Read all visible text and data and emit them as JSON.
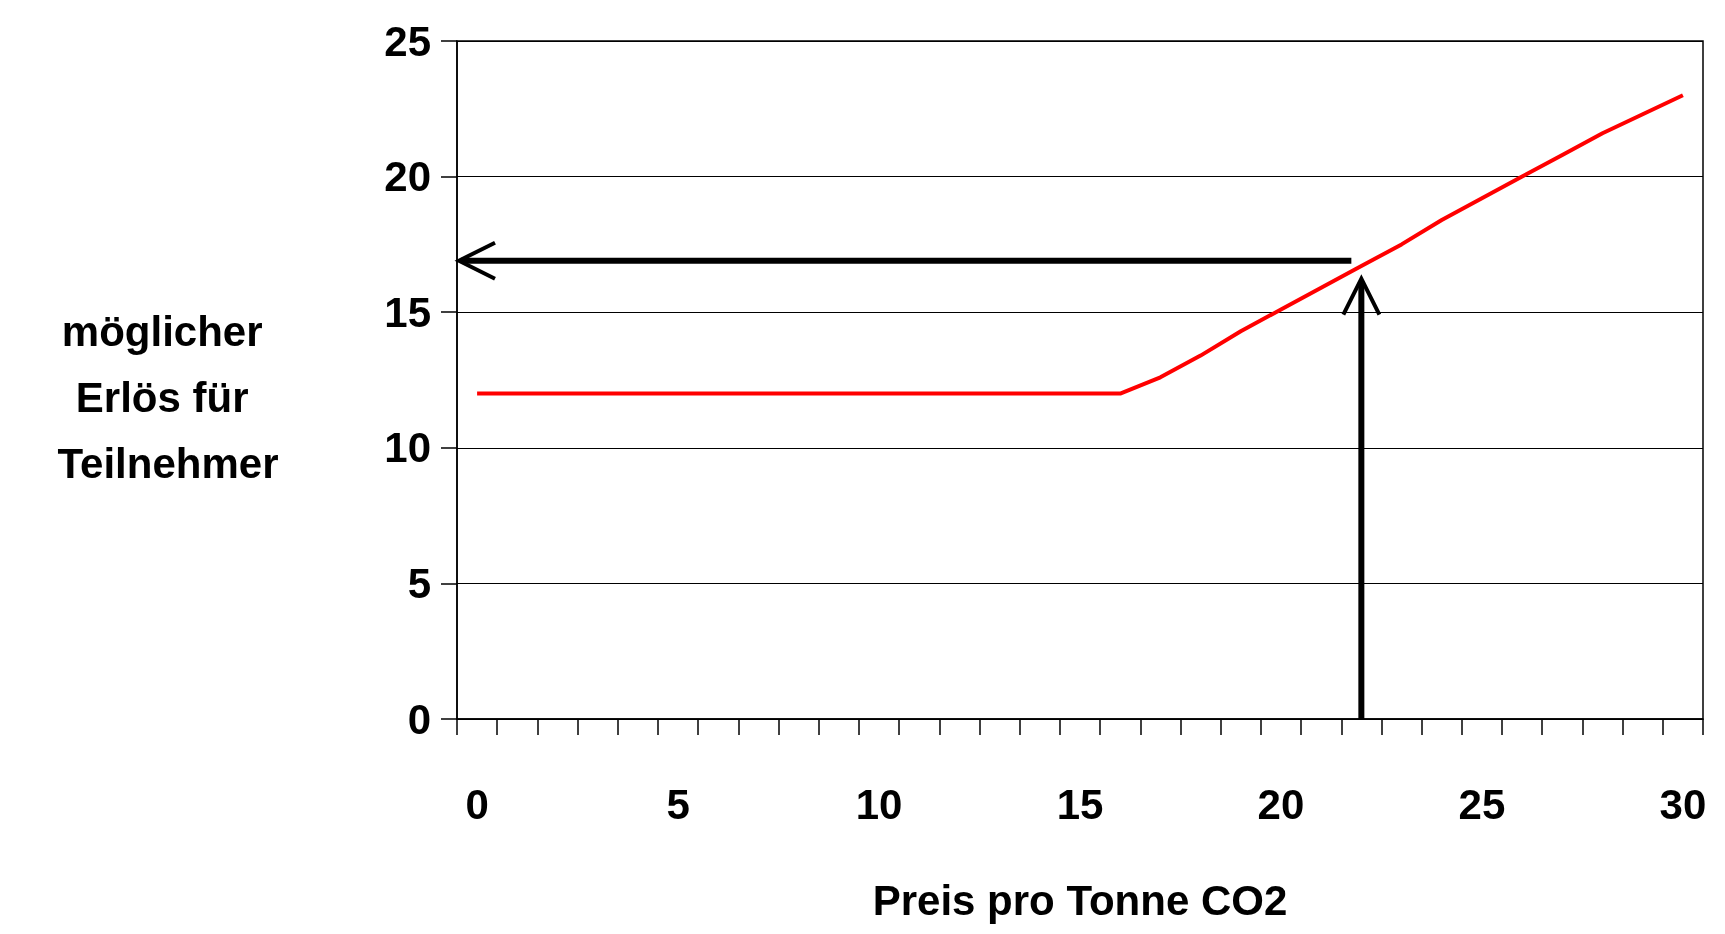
{
  "chart_data": {
    "type": "line",
    "xlabel": "Preis pro Tonne CO2",
    "ylabel": "möglicher Erlös für Teilnehmer",
    "x": [
      0,
      1,
      2,
      3,
      4,
      5,
      6,
      7,
      8,
      9,
      10,
      11,
      12,
      13,
      14,
      15,
      16,
      17,
      18,
      19,
      20,
      21,
      22,
      23,
      24,
      25,
      26,
      27,
      28,
      29,
      30
    ],
    "series": [
      {
        "color": "#ff0000",
        "values": [
          12,
          12,
          12,
          12,
          12,
          12,
          12,
          12,
          12,
          12,
          12,
          12,
          12,
          12,
          12,
          12,
          12,
          12.6,
          13.4,
          14.3,
          15.1,
          15.9,
          16.7,
          17.5,
          18.4,
          19.2,
          20,
          20.8,
          21.6,
          22.3,
          23
        ]
      }
    ],
    "xlim": [
      -0.5,
      30.5
    ],
    "xticks": [
      0,
      5,
      10,
      15,
      20,
      25,
      30,
      {
        "value": -0.5,
        "label": null
      },
      {
        "value": 0.5,
        "label": null
      },
      {
        "value": 1.5,
        "label": null
      },
      {
        "value": 2.5,
        "label": null
      },
      {
        "value": 3.5,
        "label": null
      },
      {
        "value": 4.5,
        "label": null
      },
      {
        "value": 5.5,
        "label": null
      },
      {
        "value": 6.5,
        "label": null
      },
      {
        "value": 7.5,
        "label": null
      },
      {
        "value": 8.5,
        "label": null
      },
      {
        "value": 9.5,
        "label": null
      },
      {
        "value": 10.5,
        "label": null
      },
      {
        "value": 11.5,
        "label": null
      },
      {
        "value": 12.5,
        "label": null
      },
      {
        "value": 13.5,
        "label": null
      },
      {
        "value": 14.5,
        "label": null
      },
      {
        "value": 15.5,
        "label": null
      },
      {
        "value": 16.5,
        "label": null
      },
      {
        "value": 17.5,
        "label": null
      },
      {
        "value": 18.5,
        "label": null
      },
      {
        "value": 19.5,
        "label": null
      },
      {
        "value": 20.5,
        "label": null
      },
      {
        "value": 21.5,
        "label": null
      },
      {
        "value": 22.5,
        "label": null
      },
      {
        "value": 23.5,
        "label": null
      },
      {
        "value": 24.5,
        "label": null
      },
      {
        "value": 25.5,
        "label": null
      },
      {
        "value": 26.5,
        "label": null
      },
      {
        "value": 27.5,
        "label": null
      },
      {
        "value": 28.5,
        "label": null
      },
      {
        "value": 29.5,
        "label": null
      },
      {
        "value": 30.5,
        "label": null
      }
    ],
    "ref_lines": [
      {
        "axis": "x",
        "value": 22,
        "color": "#000000"
      },
      {
        "axis": "y",
        "value": 16.9,
        "color": "#000000"
      }
    ],
    "ylim": [
      0,
      25
    ],
    "yticks": [
      0,
      5,
      10,
      15,
      20,
      25
    ],
    "grid": "y",
    "marker": "none",
    "line_style": "solid"
  }
}
